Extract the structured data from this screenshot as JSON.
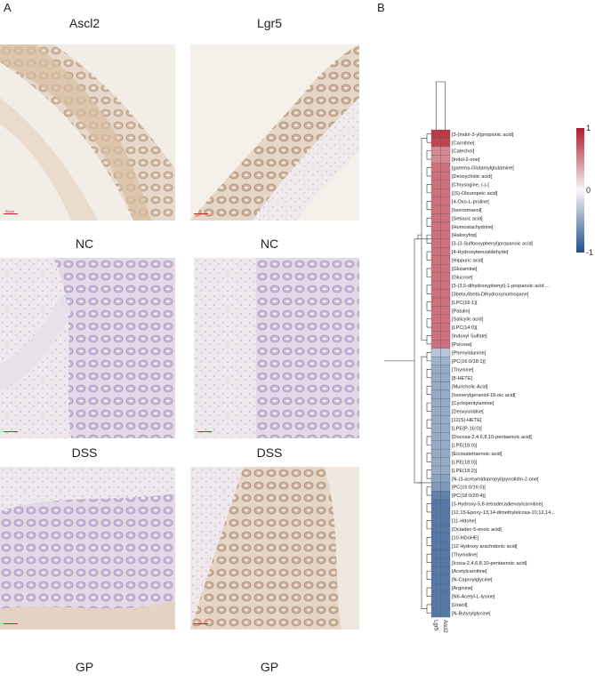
{
  "panels": {
    "a": "A",
    "b": "B"
  },
  "columns": [
    "Ascl2",
    "Lgr5"
  ],
  "row_labels": [
    "NC",
    "DSS",
    "GP"
  ],
  "scalebar_text": "50μm",
  "chart_data": {
    "type": "heatmap",
    "columns": [
      "Lgr5",
      "Ascl2"
    ],
    "colorbar": {
      "ticks": [
        1,
        0,
        -1
      ],
      "range": [
        -1,
        1
      ],
      "low_color": "#1f4e8c",
      "mid_color": "#f7f7f7",
      "high_color": "#b2182b"
    },
    "rows": [
      {
        "name": "[3-(Indol-3-yl)propionic acid[",
        "values": [
          0.85,
          0.85
        ]
      },
      {
        "name": "[Carnitine[",
        "values": [
          0.8,
          0.8
        ]
      },
      {
        "name": "[Catechol[",
        "values": [
          0.5,
          0.5
        ]
      },
      {
        "name": "[Indol-2-one[",
        "values": [
          0.5,
          0.5
        ]
      },
      {
        "name": "[gamma-Glutamylglutamine[",
        "values": [
          0.6,
          0.6
        ]
      },
      {
        "name": "[Deoxycholic acid[",
        "values": [
          0.6,
          0.6
        ]
      },
      {
        "name": "[Chrysogine, (-)-[",
        "values": [
          0.6,
          0.6
        ]
      },
      {
        "name": "[(S)-Oleuropeic acid[",
        "values": [
          0.6,
          0.6
        ]
      },
      {
        "name": "[4-Oxo-L-proline[",
        "values": [
          0.6,
          0.6
        ]
      },
      {
        "name": "[Isorosmanol[",
        "values": [
          0.6,
          0.6
        ]
      },
      {
        "name": "[Sebacic acid[",
        "values": [
          0.6,
          0.6
        ]
      },
      {
        "name": "[Homostachydrine[",
        "values": [
          0.6,
          0.6
        ]
      },
      {
        "name": "[Haloxyfop[",
        "values": [
          0.6,
          0.6
        ]
      },
      {
        "name": "[3-(3-Sulfooxyphenyl)propanoic acid[",
        "values": [
          0.6,
          0.6
        ]
      },
      {
        "name": "[4-Hydroxybenzaldehyde[",
        "values": [
          0.6,
          0.6
        ]
      },
      {
        "name": "[Hippuric acid[",
        "values": [
          0.6,
          0.6
        ]
      },
      {
        "name": "[Glutamine[",
        "values": [
          0.6,
          0.6
        ]
      },
      {
        "name": "[Glucose[",
        "values": [
          0.6,
          0.6
        ]
      },
      {
        "name": "[3-(3,5-dihydroxyphenyl)-1-propanoic acid ...",
        "values": [
          0.6,
          0.6
        ]
      },
      {
        "name": "[3beta,6beta-Dihydroxynortropane[",
        "values": [
          0.6,
          0.6
        ]
      },
      {
        "name": "[LPC(16:1)[",
        "values": [
          0.6,
          0.6
        ]
      },
      {
        "name": "[Patulin[",
        "values": [
          0.6,
          0.6
        ]
      },
      {
        "name": "[Salicylic acid[",
        "values": [
          0.6,
          0.6
        ]
      },
      {
        "name": "[LPC(14:0)[",
        "values": [
          0.6,
          0.6
        ]
      },
      {
        "name": "[Indoxyl Sulfate[",
        "values": [
          0.6,
          0.6
        ]
      },
      {
        "name": "[Psicose[",
        "values": [
          0.6,
          0.6
        ]
      },
      {
        "name": "[Phenylalanine[",
        "values": [
          -0.3,
          -0.3
        ]
      },
      {
        "name": "[PC(16:0/18:1)[",
        "values": [
          -0.4,
          -0.4
        ]
      },
      {
        "name": "[Thymine[",
        "values": [
          -0.45,
          -0.45
        ]
      },
      {
        "name": "[8-HETE[",
        "values": [
          -0.45,
          -0.45
        ]
      },
      {
        "name": "[Muricholic Acid[",
        "values": [
          -0.45,
          -0.45
        ]
      },
      {
        "name": "[Isonerylgeraniol-18-oic acid[",
        "values": [
          -0.45,
          -0.45
        ]
      },
      {
        "name": "[Cyclopentylamine[",
        "values": [
          -0.45,
          -0.45
        ]
      },
      {
        "name": "[Deoxyuridine[",
        "values": [
          -0.45,
          -0.45
        ]
      },
      {
        "name": "[12(S)-HETE[",
        "values": [
          -0.45,
          -0.45
        ]
      },
      {
        "name": "[LPE(P-16:0)[",
        "values": [
          -0.45,
          -0.45
        ]
      },
      {
        "name": "[Docosa-2,4,6,8,10-pentaenoic acid[",
        "values": [
          -0.45,
          -0.45
        ]
      },
      {
        "name": "[LPE(18:0)[",
        "values": [
          -0.45,
          -0.45
        ]
      },
      {
        "name": "[Eicosatetraenoic acid[",
        "values": [
          -0.45,
          -0.45
        ]
      },
      {
        "name": "[LPE(18:0)[",
        "values": [
          -0.45,
          -0.45
        ]
      },
      {
        "name": "[LPE(18:2)[",
        "values": [
          -0.45,
          -0.45
        ]
      },
      {
        "name": "[N-(3-acetamidopropyl)pyrrolidin-2-one[",
        "values": [
          -0.5,
          -0.5
        ]
      },
      {
        "name": "[PC(16:0/16:0)[",
        "values": [
          -0.55,
          -0.55
        ]
      },
      {
        "name": "[PC(18:0/20:4)[",
        "values": [
          -0.7,
          -0.7
        ]
      },
      {
        "name": "[3-Hydroxy-5,8-tetradecadienoylcarnitine[",
        "values": [
          -0.75,
          -0.75
        ]
      },
      {
        "name": "[12,15-Epoxy-13,14-dimethyleicosa-10,12,14...",
        "values": [
          -0.75,
          -0.75
        ]
      },
      {
        "name": "[11-Hdohe[",
        "values": [
          -0.75,
          -0.75
        ]
      },
      {
        "name": "[Octadec-5-enoic acid[",
        "values": [
          -0.75,
          -0.75
        ]
      },
      {
        "name": "[10-HDoHE[",
        "values": [
          -0.75,
          -0.75
        ]
      },
      {
        "name": "[12 Hydroxy arachidonic acid[",
        "values": [
          -0.75,
          -0.75
        ]
      },
      {
        "name": "[Thymidine[",
        "values": [
          -0.75,
          -0.75
        ]
      },
      {
        "name": "[Icosa-2,4,6,8,10-pentaenoic acid[",
        "values": [
          -0.75,
          -0.75
        ]
      },
      {
        "name": "[Acetylcarnitine[",
        "values": [
          -0.75,
          -0.75
        ]
      },
      {
        "name": "[N-Caproylglycine[",
        "values": [
          -0.75,
          -0.75
        ]
      },
      {
        "name": "[Arginine[",
        "values": [
          -0.75,
          -0.75
        ]
      },
      {
        "name": "[N6-Acetyl-L-lysine[",
        "values": [
          -0.75,
          -0.75
        ]
      },
      {
        "name": "[Uracil[",
        "values": [
          -0.75,
          -0.75
        ]
      },
      {
        "name": "[N-Butyrylglycine[",
        "values": [
          -0.75,
          -0.75
        ]
      }
    ]
  }
}
